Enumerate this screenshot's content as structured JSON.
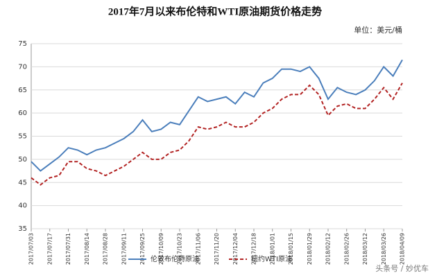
{
  "chart_data": {
    "type": "line",
    "title": "2017年7月以来布伦特和WTI原油期货价格走势",
    "unit_label": "单位：美元/桶",
    "categories": [
      "2017/07/03",
      null,
      "2017/07/17",
      null,
      "2017/07/31",
      null,
      "2017/08/14",
      null,
      "2017/08/28",
      null,
      "2017/09/11",
      null,
      "2017/09/25",
      null,
      "2017/10/09",
      null,
      "2017/10/23",
      null,
      "2017/11/06",
      null,
      "2017/11/20",
      null,
      "2017/12/04",
      null,
      "2017/12/18",
      null,
      "2018/01/01",
      null,
      "2018/01/15",
      null,
      "2018/01/29",
      null,
      "2018/02/12",
      null,
      "2018/02/26",
      null,
      "2018/03/12",
      null,
      "2018/03/26",
      null,
      "2018/04/09"
    ],
    "series": [
      {
        "name": "伦敦布伦特原油",
        "color": "#4a7ebb",
        "dash": false,
        "values": [
          49.5,
          47.5,
          49,
          50.5,
          52.5,
          52,
          51,
          52,
          52.5,
          53.5,
          54.5,
          56,
          58.5,
          56,
          56.5,
          58,
          57.5,
          60.5,
          63.5,
          62.5,
          63,
          63.5,
          62,
          64.5,
          63.5,
          66.5,
          67.5,
          69.5,
          69.5,
          69,
          70,
          67.5,
          63,
          65.5,
          64.5,
          64,
          65,
          67,
          70,
          68,
          71.5
        ]
      },
      {
        "name": "纽约WTI原油",
        "color": "#b22222",
        "dash": true,
        "values": [
          46,
          44.5,
          46,
          46.5,
          49.5,
          49.5,
          48,
          47.5,
          46.5,
          47.5,
          48.5,
          50,
          51.5,
          50,
          50,
          51.5,
          52,
          54,
          57,
          56.5,
          57,
          58,
          57,
          57,
          58,
          60,
          61,
          63,
          64,
          64,
          66,
          64,
          59.5,
          61.5,
          62,
          61,
          61,
          63,
          65.5,
          63,
          66.5
        ]
      }
    ],
    "ylim": [
      35,
      75
    ],
    "yticks": [
      35,
      40,
      45,
      50,
      55,
      60,
      65,
      70,
      75
    ],
    "grid": true,
    "legend": "bottom"
  },
  "watermark": "头条号 / 妙优车"
}
